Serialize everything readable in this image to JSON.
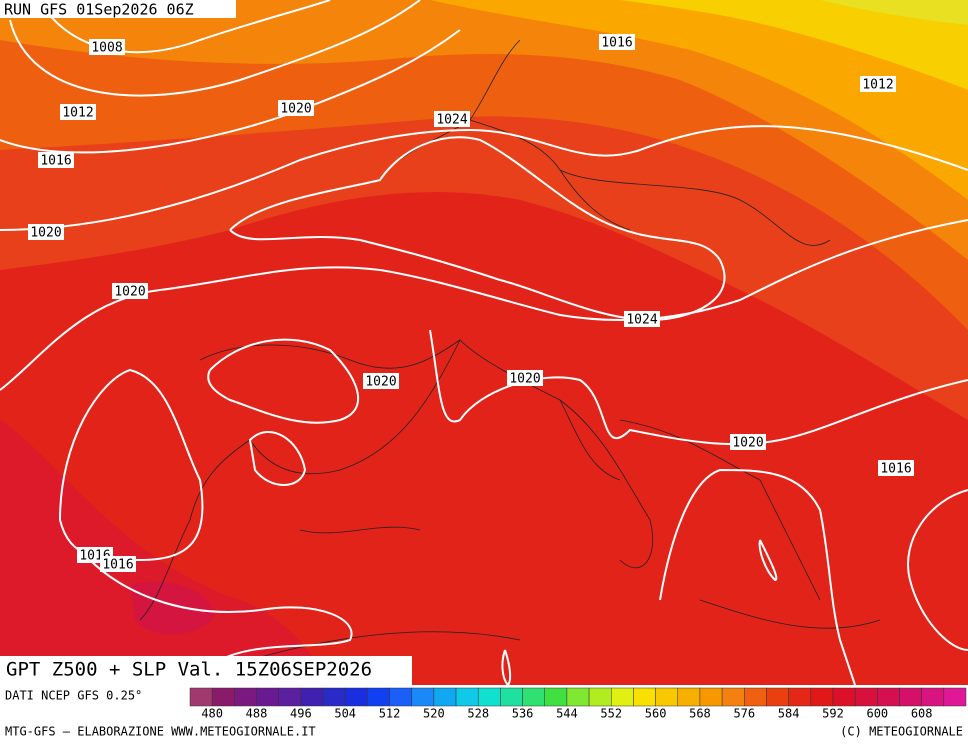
{
  "header": {
    "run": "RUN GFS 01Sep2026 06Z"
  },
  "isobar_labels": [
    "1008",
    "1016",
    "1012",
    "1012",
    "1020",
    "1024",
    "1016",
    "1020",
    "1020",
    "1024",
    "1020",
    "1020",
    "1020",
    "1016",
    "1016",
    "1016"
  ],
  "title": "GPT Z500 + SLP Val. 15Z06SEP2026",
  "source": "DATI NCEP GFS 0.25°",
  "colorbar": {
    "labels": [
      480,
      488,
      496,
      504,
      512,
      520,
      528,
      536,
      544,
      552,
      560,
      568,
      576,
      584,
      592,
      600,
      608
    ]
  },
  "footer": {
    "left": "MTG-GFS — ELABORAZIONE WWW.METEOGIORNALE.IT",
    "right": "(C) METEOGIORNALE"
  }
}
